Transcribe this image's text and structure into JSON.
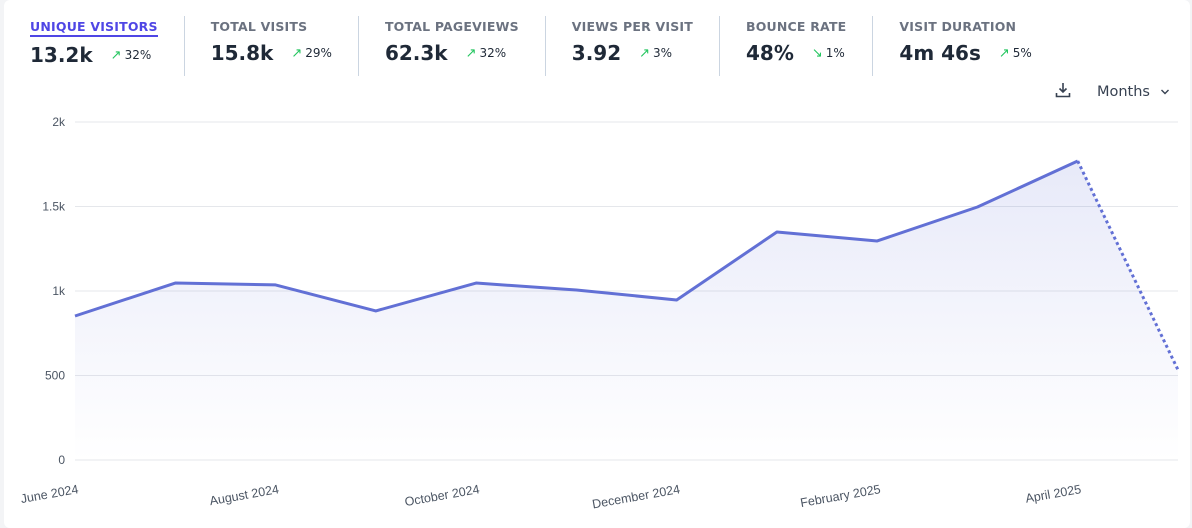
{
  "metrics": [
    {
      "label": "UNIQUE VISITORS",
      "value": "13.2k",
      "change": "32%",
      "direction": "up",
      "active": true
    },
    {
      "label": "TOTAL VISITS",
      "value": "15.8k",
      "change": "29%",
      "direction": "up"
    },
    {
      "label": "TOTAL PAGEVIEWS",
      "value": "62.3k",
      "change": "32%",
      "direction": "up"
    },
    {
      "label": "VIEWS PER VISIT",
      "value": "3.92",
      "change": "3%",
      "direction": "up"
    },
    {
      "label": "BOUNCE RATE",
      "value": "48%",
      "change": "1%",
      "direction": "down"
    },
    {
      "label": "VISIT DURATION",
      "value": "4m 46s",
      "change": "5%",
      "direction": "up"
    }
  ],
  "controls": {
    "download_icon": "download-icon",
    "interval": "Months"
  },
  "colors": {
    "accent": "#6270d5",
    "up": "#22c55e",
    "down": "#22c55e"
  },
  "chart_data": {
    "type": "line",
    "x": [
      "June 2024",
      "July 2024",
      "August 2024",
      "September 2024",
      "October 2024",
      "November 2024",
      "December 2024",
      "January 2025",
      "February 2025",
      "March 2025",
      "April 2025",
      "May 2025"
    ],
    "x_tick_labels": [
      "June 2024",
      "August 2024",
      "October 2024",
      "December 2024",
      "February 2025",
      "April 2025"
    ],
    "series": [
      {
        "values": [
          852,
          1047,
          1036,
          882,
          1047,
          1006,
          947,
          1349,
          1296,
          1497,
          1769,
          533
        ]
      }
    ],
    "incomplete_last_point": true,
    "y_ticks": [
      "0",
      "500",
      "1k",
      "1.5k",
      "2k"
    ],
    "ylim": [
      0,
      2000
    ],
    "grid": true
  }
}
